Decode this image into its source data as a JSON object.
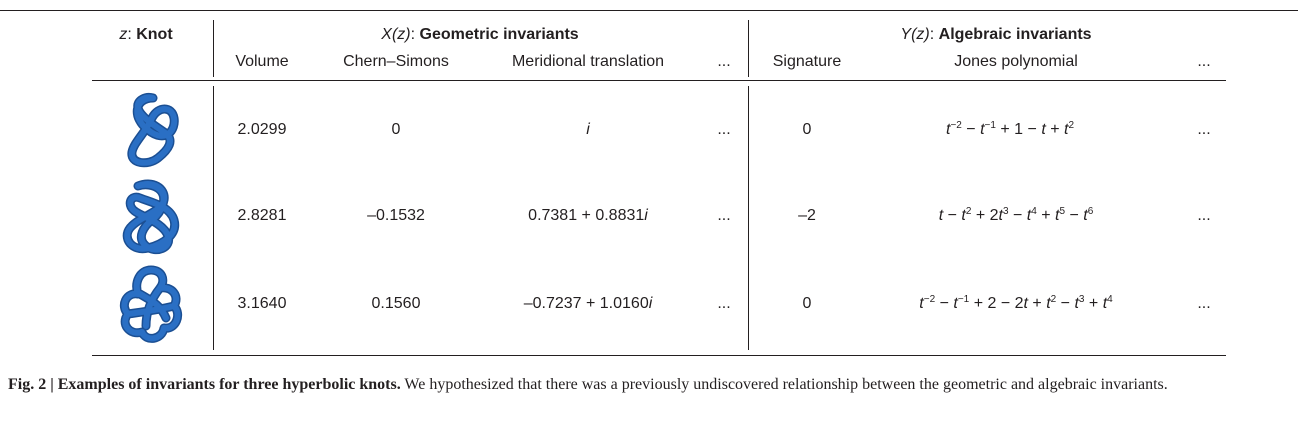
{
  "header": {
    "knot_var": "z",
    "knot_label": "Knot",
    "geo_var": "X(z)",
    "geo_label": "Geometric invariants",
    "alg_var": "Y(z)",
    "alg_label": "Algebraic invariants",
    "columns": {
      "volume": "Volume",
      "chern_simons": "Chern–Simons",
      "meridional": "Meridional translation",
      "geo_more": "...",
      "signature": "Signature",
      "jones": "Jones polynomial",
      "alg_more": "..."
    }
  },
  "rows": [
    {
      "volume": "2.0299",
      "chern_simons": "0",
      "meridional": "i",
      "geo_more": "...",
      "signature": "0",
      "alg_more": "..."
    },
    {
      "volume": "2.8281",
      "chern_simons": "–0.1532",
      "meridional": "0.7381 + 0.8831i",
      "geo_more": "...",
      "signature": "–2",
      "alg_more": "..."
    },
    {
      "volume": "3.1640",
      "chern_simons": "0.1560",
      "meridional": "–0.7237 + 1.0160i",
      "geo_more": "...",
      "signature": "0",
      "alg_more": "..."
    }
  ],
  "jones": [
    [
      {
        "t": "t"
      },
      {
        "sup": "−2"
      },
      {
        "t": " − "
      },
      {
        "t": "t"
      },
      {
        "sup": "−1"
      },
      {
        "t": " + 1 − "
      },
      {
        "t": "t"
      },
      {
        "t": " + "
      },
      {
        "t": "t"
      },
      {
        "sup": "2"
      }
    ],
    [
      {
        "t": "t"
      },
      {
        "t": " − "
      },
      {
        "t": "t"
      },
      {
        "sup": "2"
      },
      {
        "t": " + 2"
      },
      {
        "t": "t"
      },
      {
        "sup": "3"
      },
      {
        "t": " − "
      },
      {
        "t": "t"
      },
      {
        "sup": "4"
      },
      {
        "t": " + "
      },
      {
        "t": "t"
      },
      {
        "sup": "5"
      },
      {
        "t": " − "
      },
      {
        "t": "t"
      },
      {
        "sup": "6"
      }
    ],
    [
      {
        "t": "t"
      },
      {
        "sup": "−2"
      },
      {
        "t": " − "
      },
      {
        "t": "t"
      },
      {
        "sup": "−1"
      },
      {
        "t": " + 2 − 2"
      },
      {
        "t": "t"
      },
      {
        "t": " + "
      },
      {
        "t": "t"
      },
      {
        "sup": "2"
      },
      {
        "t": " − "
      },
      {
        "t": "t"
      },
      {
        "sup": "3"
      },
      {
        "t": " + "
      },
      {
        "t": "t"
      },
      {
        "sup": "4"
      }
    ]
  ],
  "caption": {
    "label": "Fig. 2 | Examples of invariants for three hyperbolic knots.",
    "text": " We hypothesized that there was a previously undiscovered relationship between the geometric and algebraic invariants."
  },
  "knot_color": "#2a6fc4"
}
